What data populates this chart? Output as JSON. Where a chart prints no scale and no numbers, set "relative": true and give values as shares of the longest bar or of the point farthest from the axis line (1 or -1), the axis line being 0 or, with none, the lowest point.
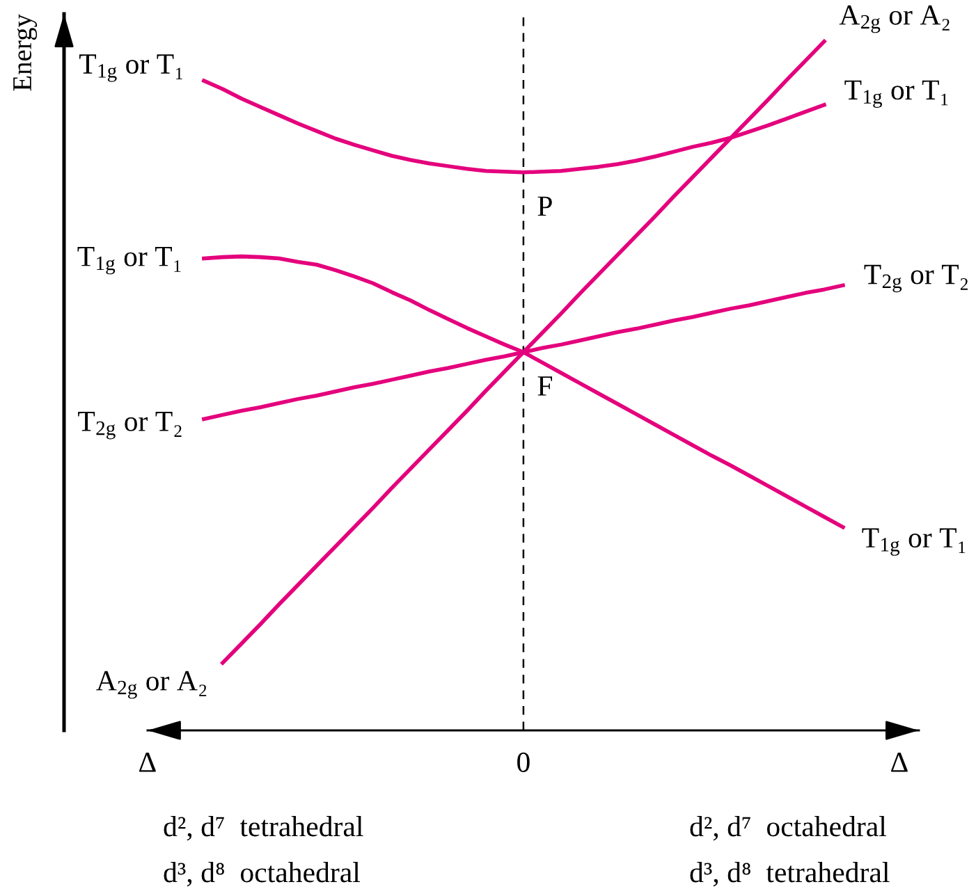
{
  "chart_data": {
    "type": "line",
    "ylabel": "Energy",
    "relative": true,
    "categories": [
      "Δ",
      null,
      null,
      null,
      null,
      null,
      null,
      null,
      null,
      null,
      null,
      null,
      null,
      null,
      null,
      null,
      null,
      null,
      null,
      null,
      "0",
      null,
      null,
      null,
      null,
      null,
      null,
      null,
      null,
      null,
      null,
      null,
      null,
      null,
      null,
      null,
      null,
      null,
      null,
      null,
      "Δ"
    ],
    "tick_labels": "x",
    "line_style": "solid",
    "ref_lines": [
      {
        "axis": "x",
        "value": "0",
        "color": "#000000",
        "line_style": "dashed"
      }
    ],
    "series": [
      {
        "name": "T$_{1g}$ or T₁",
        "color": "#e4007c",
        "values": [
          null,
          null,
          null,
          0.943,
          0.931,
          0.917,
          0.905,
          0.893,
          0.881,
          0.87,
          0.859,
          0.85,
          0.842,
          0.834,
          0.828,
          0.823,
          0.819,
          0.815,
          0.812,
          0.811,
          0.81,
          0.811,
          0.812,
          0.815,
          0.818,
          0.822,
          0.827,
          0.833,
          0.84,
          0.847,
          0.853,
          0.86,
          0.869,
          0.878,
          0.888,
          0.898,
          0.908,
          null,
          null,
          null,
          null
        ]
      },
      {
        "name": "T$_{1g}$ or T₁",
        "color": "#e4007c",
        "values": [
          null,
          null,
          null,
          0.685,
          0.687,
          0.688,
          0.687,
          0.685,
          0.68,
          0.676,
          0.668,
          0.659,
          0.649,
          0.636,
          0.624,
          0.61,
          0.597,
          0.584,
          0.572,
          0.56,
          0.549,
          0.534,
          0.519,
          0.504,
          0.489,
          0.474,
          0.459,
          0.444,
          0.429,
          0.414,
          0.399,
          0.385,
          0.37,
          0.355,
          0.34,
          0.325,
          0.31,
          0.295,
          null,
          null,
          null
        ]
      },
      {
        "name": "T$_{2g}$ or T₂",
        "color": "#e4007c",
        "values": [
          null,
          null,
          null,
          0.452,
          0.458,
          0.464,
          0.469,
          0.475,
          0.481,
          0.486,
          0.492,
          0.498,
          0.503,
          0.509,
          0.515,
          0.521,
          0.526,
          0.532,
          0.538,
          0.543,
          0.549,
          0.555,
          0.56,
          0.566,
          0.572,
          0.578,
          0.583,
          0.589,
          0.595,
          0.6,
          0.606,
          0.612,
          0.617,
          0.623,
          0.629,
          0.635,
          0.64,
          0.646,
          null,
          null,
          null
        ]
      },
      {
        "name": "A$_{2g}$ or A₂",
        "color": "#e4007c",
        "values": [
          null,
          null,
          null,
          null,
          0.098,
          0.126,
          0.154,
          0.183,
          0.211,
          0.239,
          0.267,
          0.295,
          0.323,
          0.352,
          0.38,
          0.408,
          0.436,
          0.464,
          0.493,
          0.521,
          0.549,
          0.577,
          0.605,
          0.634,
          0.662,
          0.69,
          0.718,
          0.746,
          0.775,
          0.803,
          0.831,
          0.859,
          0.887,
          0.915,
          0.944,
          0.972,
          1.0,
          null,
          null,
          null,
          null
        ]
      }
    ],
    "annotations": [
      {
        "text": "P",
        "x": "0",
        "y": 0.81
      },
      {
        "text": "F",
        "x": "0",
        "y": 0.549
      },
      "d², d⁷  tetrahedral",
      "d², d⁷  octahedral",
      "d³, d⁸  octahedral",
      "d³, d⁸  tetrahedral"
    ]
  }
}
